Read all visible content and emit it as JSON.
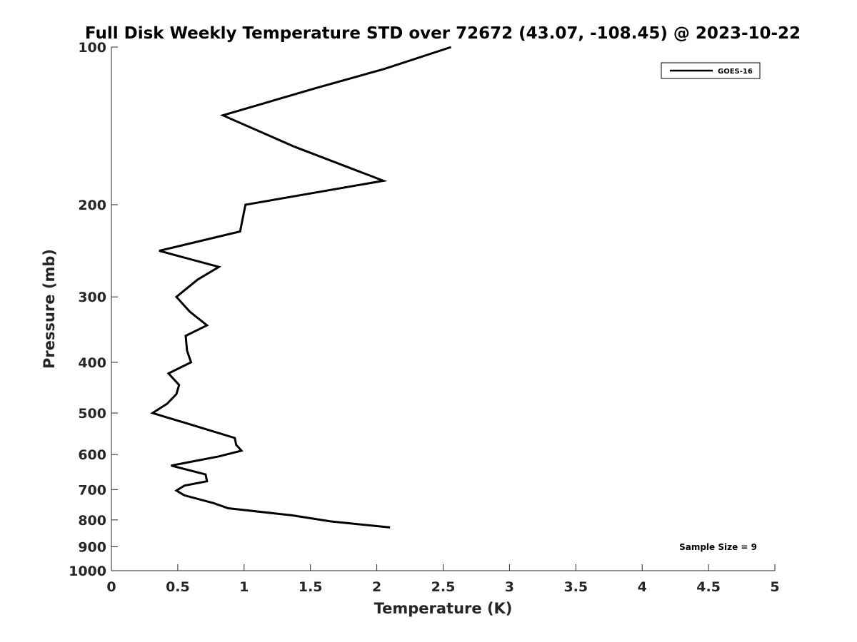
{
  "chart_data": {
    "type": "line",
    "title": "Full Disk Weekly Temperature STD over 72672 (43.07, -108.45) @ 2023-10-22",
    "xlabel": "Temperature (K)",
    "ylabel": "Pressure (mb)",
    "xlim": [
      0,
      5
    ],
    "ylim": [
      100,
      1000
    ],
    "y_scale": "log",
    "y_reversed": true,
    "x_ticks": [
      0,
      0.5,
      1,
      1.5,
      2,
      2.5,
      3,
      3.5,
      4,
      4.5,
      5
    ],
    "x_tick_labels": [
      "0",
      "0.5",
      "1",
      "1.5",
      "2",
      "2.5",
      "3",
      "3.5",
      "4",
      "4.5",
      "5"
    ],
    "y_ticks": [
      100,
      200,
      300,
      400,
      500,
      600,
      700,
      800,
      900,
      1000
    ],
    "y_tick_labels": [
      "100",
      "200",
      "300",
      "400",
      "500",
      "600",
      "700",
      "800",
      "900",
      "1000"
    ],
    "grid": false,
    "legend_position": "top-right",
    "series": [
      {
        "name": "GOES-16",
        "color": "#000000",
        "x": [
          2.56,
          2.06,
          1.53,
          0.84,
          1.38,
          2.05,
          1.01,
          0.97,
          0.36,
          0.81,
          0.65,
          0.49,
          0.59,
          0.72,
          0.56,
          0.57,
          0.6,
          0.43,
          0.51,
          0.49,
          0.42,
          0.31,
          0.62,
          0.93,
          0.94,
          0.98,
          0.81,
          0.45,
          0.71,
          0.72,
          0.55,
          0.49,
          0.55,
          0.77,
          0.88,
          1.36,
          1.65,
          2.1
        ],
        "y": [
          100,
          110,
          120,
          135,
          155,
          180,
          200,
          225,
          245,
          263,
          278,
          300,
          320,
          340,
          356,
          380,
          400,
          420,
          442,
          460,
          480,
          500,
          528,
          558,
          575,
          590,
          605,
          630,
          655,
          675,
          688,
          703,
          718,
          743,
          760,
          784,
          805,
          827
        ]
      }
    ],
    "annotations": [
      {
        "text": "Sample Size = 9"
      }
    ]
  }
}
